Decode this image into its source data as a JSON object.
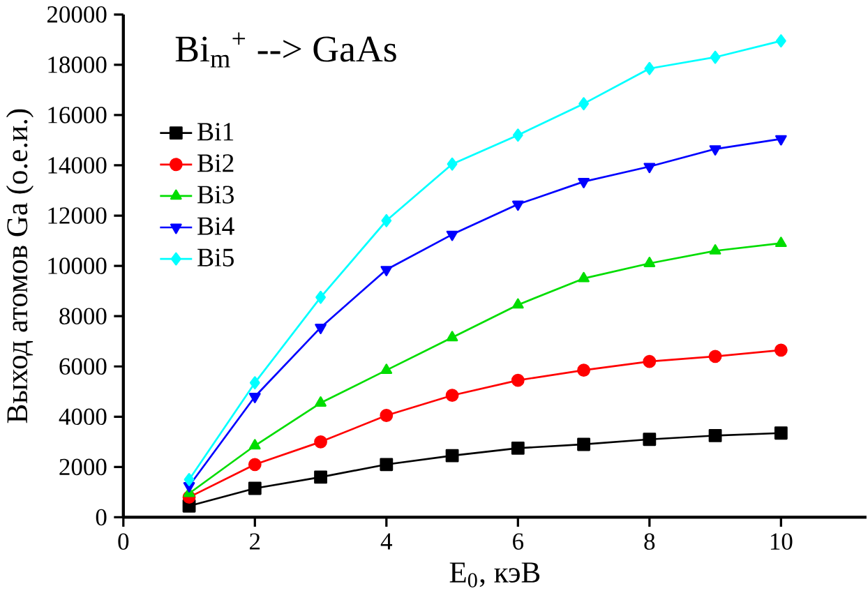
{
  "chart_data": {
    "type": "line",
    "title": "Bi$_{m}$$^{+}$ --> GaAs",
    "xlabel": "E$_{0}$, кэВ",
    "ylabel": "Выход атомов Ga (о.е.и.)",
    "x": [
      1,
      2,
      3,
      4,
      5,
      6,
      7,
      8,
      9,
      10
    ],
    "series": [
      {
        "name": "Bi1",
        "color": "#000000",
        "marker": "square",
        "values": [
          450,
          1150,
          1600,
          2100,
          2450,
          2750,
          2900,
          3100,
          3250,
          3350
        ]
      },
      {
        "name": "Bi2",
        "color": "#ff0000",
        "marker": "circle",
        "values": [
          800,
          2100,
          3000,
          4050,
          4850,
          5450,
          5850,
          6200,
          6400,
          6650
        ]
      },
      {
        "name": "Bi3",
        "color": "#00dd00",
        "marker": "triangle",
        "values": [
          950,
          2850,
          4550,
          5850,
          7150,
          8450,
          9500,
          10100,
          10600,
          10900
        ]
      },
      {
        "name": "Bi4",
        "color": "#0000ff",
        "marker": "triangle-down",
        "values": [
          1250,
          4800,
          7550,
          9850,
          11250,
          12450,
          13350,
          13950,
          14650,
          15050
        ]
      },
      {
        "name": "Bi5",
        "color": "#00ffff",
        "marker": "diamond",
        "values": [
          1500,
          5350,
          8750,
          11800,
          14050,
          15200,
          16450,
          17850,
          18300,
          18950
        ]
      }
    ],
    "xlim": [
      0,
      11.3
    ],
    "ylim": [
      0,
      20000
    ],
    "xticks": [
      0,
      2,
      4,
      6,
      8,
      10
    ],
    "yticks": [
      0,
      2000,
      4000,
      6000,
      8000,
      10000,
      12000,
      14000,
      16000,
      18000,
      20000
    ],
    "grid": false,
    "legend": "top left",
    "line_style": "solid"
  }
}
